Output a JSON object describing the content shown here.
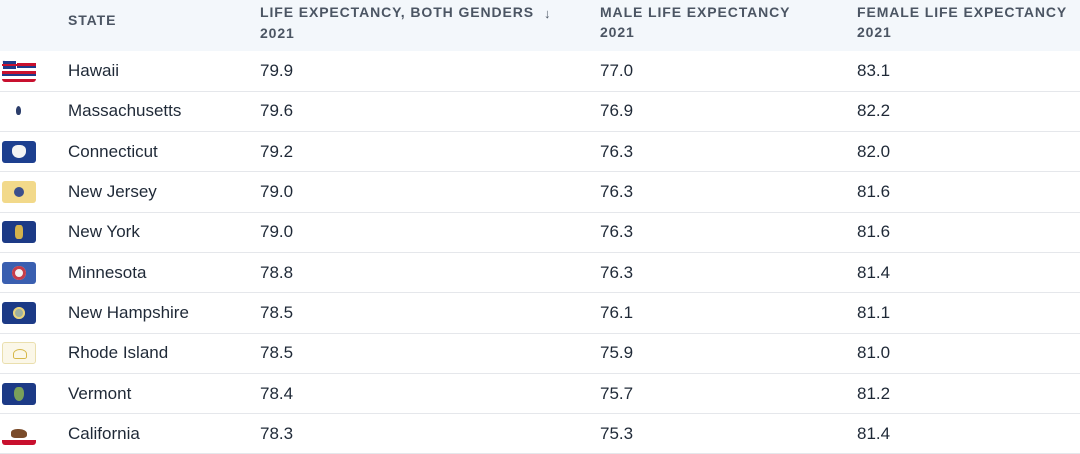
{
  "table": {
    "headers": {
      "state": "STATE",
      "both_line1": "LIFE EXPECTANCY, BOTH GENDERS",
      "both_line2": "2021",
      "male_line1": "MALE LIFE EXPECTANCY",
      "male_line2": "2021",
      "female_line1": "FEMALE LIFE EXPECTANCY",
      "female_line2": "2021",
      "sort_icon": "↓"
    },
    "rows": [
      {
        "state": "Hawaii",
        "flag": "hawaii-flag-icon",
        "both": "79.9",
        "male": "77.0",
        "female": "83.1"
      },
      {
        "state": "Massachusetts",
        "flag": "massachusetts-flag-icon",
        "both": "79.6",
        "male": "76.9",
        "female": "82.2"
      },
      {
        "state": "Connecticut",
        "flag": "connecticut-flag-icon",
        "both": "79.2",
        "male": "76.3",
        "female": "82.0"
      },
      {
        "state": "New Jersey",
        "flag": "new-jersey-flag-icon",
        "both": "79.0",
        "male": "76.3",
        "female": "81.6"
      },
      {
        "state": "New York",
        "flag": "new-york-flag-icon",
        "both": "79.0",
        "male": "76.3",
        "female": "81.6"
      },
      {
        "state": "Minnesota",
        "flag": "minnesota-flag-icon",
        "both": "78.8",
        "male": "76.3",
        "female": "81.4"
      },
      {
        "state": "New Hampshire",
        "flag": "new-hampshire-flag-icon",
        "both": "78.5",
        "male": "76.1",
        "female": "81.1"
      },
      {
        "state": "Rhode Island",
        "flag": "rhode-island-flag-icon",
        "both": "78.5",
        "male": "75.9",
        "female": "81.0"
      },
      {
        "state": "Vermont",
        "flag": "vermont-flag-icon",
        "both": "78.4",
        "male": "75.7",
        "female": "81.2"
      },
      {
        "state": "California",
        "flag": "california-flag-icon",
        "both": "78.3",
        "male": "75.3",
        "female": "81.4"
      }
    ]
  }
}
